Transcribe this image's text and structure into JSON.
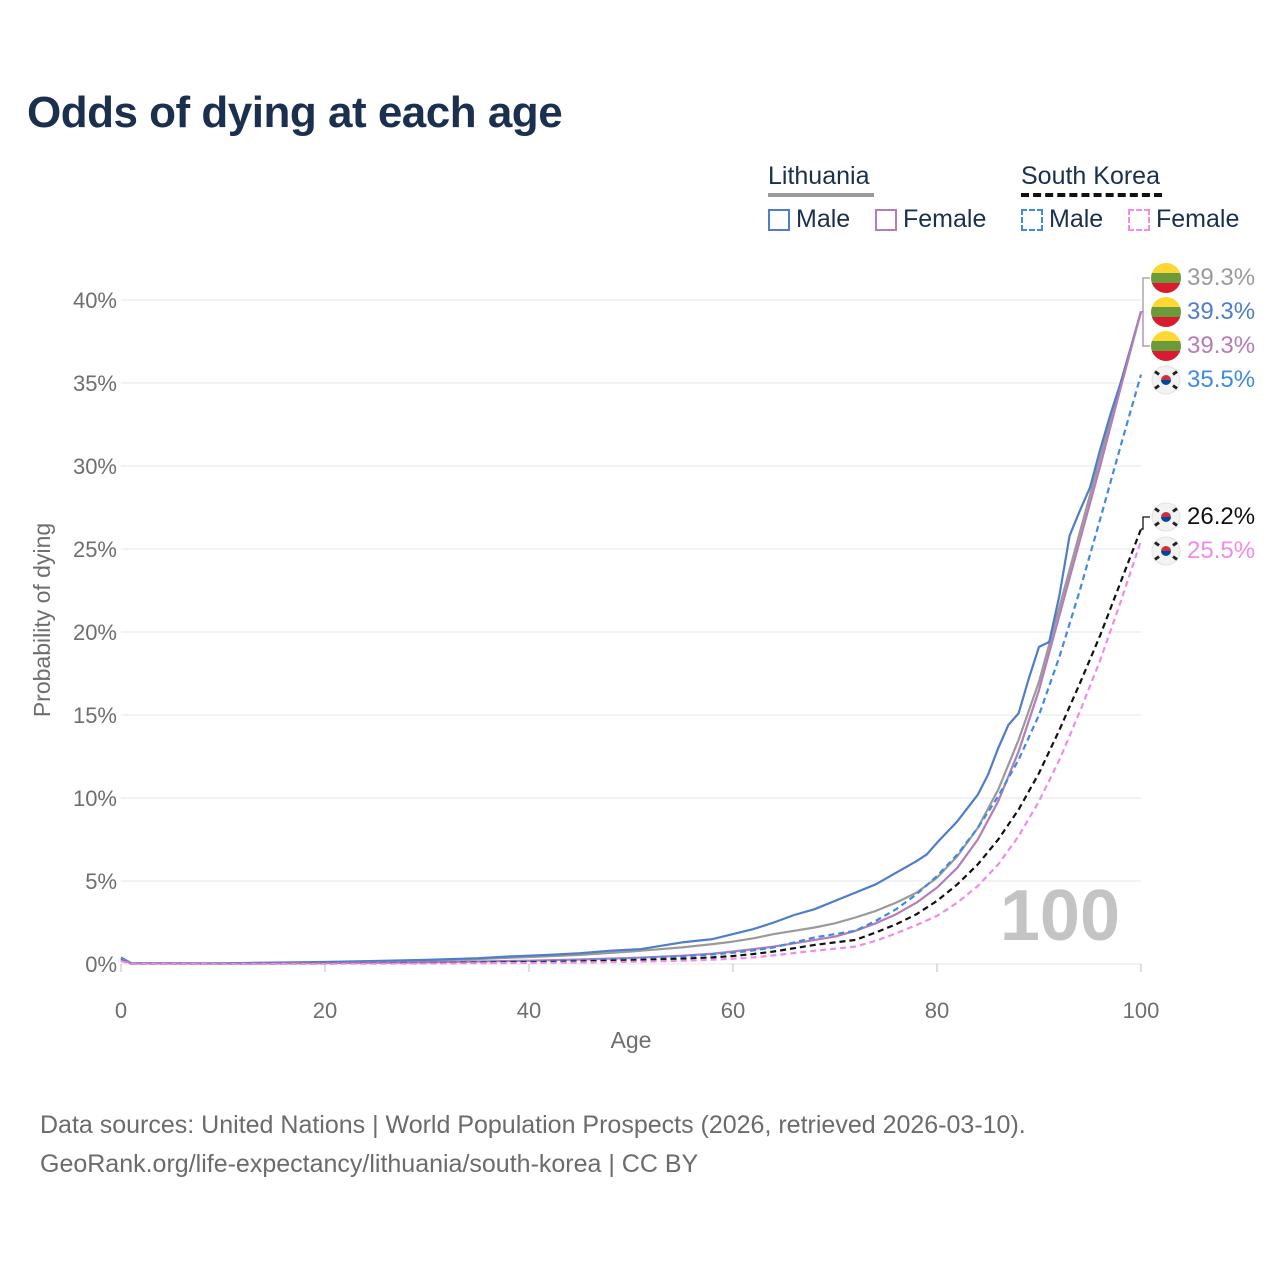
{
  "title": "Odds of dying at each age",
  "legend": {
    "groups": [
      {
        "name": "Lithuania",
        "underline_color": "#9a9a9a",
        "underline_style": "solid",
        "items": [
          {
            "label": "Male",
            "color": "#4f7dc8",
            "style": "solid"
          },
          {
            "label": "Female",
            "color": "#b57cb8",
            "style": "solid"
          }
        ]
      },
      {
        "name": "South Korea",
        "underline_color": "#111111",
        "underline_style": "dashed",
        "items": [
          {
            "label": "Male",
            "color": "#3f8be0",
            "style": "dashed"
          },
          {
            "label": "Female",
            "color": "#f08ce6",
            "style": "dashed"
          }
        ]
      }
    ]
  },
  "chart_data": {
    "type": "line",
    "xlabel": "Age",
    "ylabel": "Probability of dying",
    "xlim": [
      0,
      100
    ],
    "ylim": [
      0,
      40
    ],
    "x_ticks": [
      0,
      20,
      40,
      60,
      80,
      100
    ],
    "x_tick_labels": [
      "0",
      "20",
      "40",
      "60",
      "80",
      "100"
    ],
    "y_ticks": [
      0,
      5,
      10,
      15,
      20,
      25,
      30,
      35,
      40
    ],
    "y_tick_labels": [
      "0%",
      "5%",
      "10%",
      "15%",
      "20%",
      "25%",
      "30%",
      "35%",
      "40%"
    ],
    "grid": true,
    "watermark": "100",
    "series": [
      {
        "name": "Lithuania",
        "color": "#9a9a9a",
        "dashed": false,
        "end_label": "39.3%",
        "flag": "lithuania",
        "points": [
          [
            0,
            0.35
          ],
          [
            1,
            0.05
          ],
          [
            10,
            0.03
          ],
          [
            20,
            0.1
          ],
          [
            30,
            0.2
          ],
          [
            35,
            0.3
          ],
          [
            40,
            0.42
          ],
          [
            45,
            0.55
          ],
          [
            50,
            0.75
          ],
          [
            55,
            1.0
          ],
          [
            58,
            1.2
          ],
          [
            60,
            1.35
          ],
          [
            62,
            1.55
          ],
          [
            64,
            1.8
          ],
          [
            66,
            2.0
          ],
          [
            68,
            2.2
          ],
          [
            70,
            2.45
          ],
          [
            72,
            2.8
          ],
          [
            74,
            3.2
          ],
          [
            76,
            3.7
          ],
          [
            78,
            4.3
          ],
          [
            80,
            5.2
          ],
          [
            82,
            6.5
          ],
          [
            84,
            8.2
          ],
          [
            86,
            10.5
          ],
          [
            88,
            13.5
          ],
          [
            90,
            17.0
          ],
          [
            92,
            21.5
          ],
          [
            94,
            26.0
          ],
          [
            96,
            30.5
          ],
          [
            98,
            35.0
          ],
          [
            100,
            39.3
          ]
        ]
      },
      {
        "name": "Lithuania Male",
        "color": "#4f7dc8",
        "dashed": false,
        "end_label": "39.3%",
        "flag": "lithuania",
        "points": [
          [
            0,
            0.4
          ],
          [
            1,
            0.05
          ],
          [
            10,
            0.04
          ],
          [
            20,
            0.12
          ],
          [
            30,
            0.25
          ],
          [
            35,
            0.35
          ],
          [
            38,
            0.45
          ],
          [
            40,
            0.5
          ],
          [
            42,
            0.55
          ],
          [
            45,
            0.65
          ],
          [
            48,
            0.8
          ],
          [
            51,
            0.9
          ],
          [
            53,
            1.1
          ],
          [
            55,
            1.3
          ],
          [
            58,
            1.5
          ],
          [
            60,
            1.8
          ],
          [
            62,
            2.1
          ],
          [
            64,
            2.5
          ],
          [
            66,
            2.95
          ],
          [
            68,
            3.3
          ],
          [
            70,
            3.8
          ],
          [
            72,
            4.3
          ],
          [
            74,
            4.8
          ],
          [
            76,
            5.5
          ],
          [
            78,
            6.2
          ],
          [
            79,
            6.6
          ],
          [
            80,
            7.3
          ],
          [
            82,
            8.6
          ],
          [
            84,
            10.2
          ],
          [
            85,
            11.4
          ],
          [
            86,
            13.0
          ],
          [
            87,
            14.4
          ],
          [
            88,
            15.1
          ],
          [
            89,
            17.2
          ],
          [
            90,
            19.1
          ],
          [
            91,
            19.4
          ],
          [
            92,
            22.2
          ],
          [
            93,
            25.8
          ],
          [
            94,
            27.3
          ],
          [
            95,
            28.7
          ],
          [
            96,
            31.0
          ],
          [
            97,
            33.1
          ],
          [
            98,
            35.0
          ],
          [
            99,
            37.1
          ],
          [
            100,
            39.3
          ]
        ]
      },
      {
        "name": "Lithuania Female",
        "color": "#b57cb8",
        "dashed": false,
        "end_label": "39.3%",
        "flag": "lithuania",
        "points": [
          [
            0,
            0.3
          ],
          [
            1,
            0.04
          ],
          [
            10,
            0.02
          ],
          [
            20,
            0.05
          ],
          [
            30,
            0.1
          ],
          [
            40,
            0.2
          ],
          [
            45,
            0.27
          ],
          [
            50,
            0.36
          ],
          [
            55,
            0.5
          ],
          [
            58,
            0.62
          ],
          [
            60,
            0.75
          ],
          [
            62,
            0.9
          ],
          [
            64,
            1.05
          ],
          [
            66,
            1.25
          ],
          [
            68,
            1.45
          ],
          [
            70,
            1.65
          ],
          [
            72,
            2.0
          ],
          [
            74,
            2.45
          ],
          [
            76,
            3.0
          ],
          [
            78,
            3.7
          ],
          [
            80,
            4.6
          ],
          [
            82,
            5.8
          ],
          [
            84,
            7.5
          ],
          [
            86,
            9.8
          ],
          [
            88,
            12.8
          ],
          [
            90,
            16.5
          ],
          [
            92,
            21.0
          ],
          [
            94,
            25.5
          ],
          [
            96,
            30.0
          ],
          [
            98,
            34.7
          ],
          [
            100,
            39.3
          ]
        ]
      },
      {
        "name": "South Korea Male",
        "color": "#3f8be0",
        "dashed": true,
        "end_label": "35.5%",
        "flag": "south-korea",
        "points": [
          [
            0,
            0.25
          ],
          [
            1,
            0.03
          ],
          [
            10,
            0.02
          ],
          [
            20,
            0.04
          ],
          [
            30,
            0.07
          ],
          [
            40,
            0.15
          ],
          [
            45,
            0.22
          ],
          [
            50,
            0.32
          ],
          [
            55,
            0.45
          ],
          [
            58,
            0.58
          ],
          [
            60,
            0.68
          ],
          [
            62,
            0.82
          ],
          [
            64,
            1.0
          ],
          [
            66,
            1.3
          ],
          [
            68,
            1.6
          ],
          [
            70,
            1.8
          ],
          [
            72,
            2.0
          ],
          [
            74,
            2.6
          ],
          [
            76,
            3.3
          ],
          [
            78,
            4.2
          ],
          [
            80,
            5.3
          ],
          [
            82,
            6.6
          ],
          [
            84,
            8.2
          ],
          [
            86,
            10.1
          ],
          [
            88,
            12.3
          ],
          [
            90,
            15.0
          ],
          [
            92,
            18.5
          ],
          [
            94,
            22.5
          ],
          [
            96,
            26.8
          ],
          [
            98,
            31.2
          ],
          [
            100,
            35.5
          ]
        ]
      },
      {
        "name": "South Korea",
        "color": "#111111",
        "dashed": true,
        "end_label": "26.2%",
        "flag": "south-korea",
        "points": [
          [
            0,
            0.2
          ],
          [
            1,
            0.02
          ],
          [
            10,
            0.02
          ],
          [
            20,
            0.03
          ],
          [
            30,
            0.05
          ],
          [
            40,
            0.1
          ],
          [
            45,
            0.15
          ],
          [
            50,
            0.22
          ],
          [
            55,
            0.32
          ],
          [
            58,
            0.4
          ],
          [
            60,
            0.48
          ],
          [
            62,
            0.6
          ],
          [
            64,
            0.75
          ],
          [
            66,
            0.95
          ],
          [
            68,
            1.15
          ],
          [
            70,
            1.3
          ],
          [
            72,
            1.45
          ],
          [
            74,
            1.9
          ],
          [
            76,
            2.4
          ],
          [
            78,
            3.0
          ],
          [
            80,
            3.8
          ],
          [
            82,
            4.8
          ],
          [
            84,
            6.0
          ],
          [
            86,
            7.5
          ],
          [
            88,
            9.3
          ],
          [
            90,
            11.5
          ],
          [
            92,
            14.1
          ],
          [
            94,
            16.9
          ],
          [
            96,
            19.8
          ],
          [
            98,
            23.0
          ],
          [
            100,
            26.2
          ]
        ]
      },
      {
        "name": "South Korea Female",
        "color": "#f08ce6",
        "dashed": true,
        "end_label": "25.5%",
        "flag": "south-korea",
        "points": [
          [
            0,
            0.18
          ],
          [
            1,
            0.02
          ],
          [
            10,
            0.01
          ],
          [
            20,
            0.02
          ],
          [
            30,
            0.03
          ],
          [
            40,
            0.06
          ],
          [
            45,
            0.09
          ],
          [
            50,
            0.13
          ],
          [
            55,
            0.2
          ],
          [
            58,
            0.26
          ],
          [
            60,
            0.32
          ],
          [
            62,
            0.4
          ],
          [
            64,
            0.52
          ],
          [
            66,
            0.66
          ],
          [
            68,
            0.8
          ],
          [
            70,
            0.92
          ],
          [
            72,
            1.05
          ],
          [
            74,
            1.4
          ],
          [
            76,
            1.85
          ],
          [
            78,
            2.35
          ],
          [
            80,
            2.9
          ],
          [
            82,
            3.7
          ],
          [
            84,
            4.7
          ],
          [
            86,
            6.0
          ],
          [
            88,
            7.7
          ],
          [
            90,
            9.8
          ],
          [
            92,
            12.3
          ],
          [
            94,
            15.2
          ],
          [
            96,
            18.3
          ],
          [
            98,
            21.8
          ],
          [
            100,
            25.5
          ]
        ]
      }
    ]
  },
  "sources": {
    "line1": "Data sources: United Nations | World Population Prospects (2026, retrieved 2026-03-10).",
    "line2": "GeoRank.org/life-expectancy/lithuania/south-korea | CC BY"
  }
}
